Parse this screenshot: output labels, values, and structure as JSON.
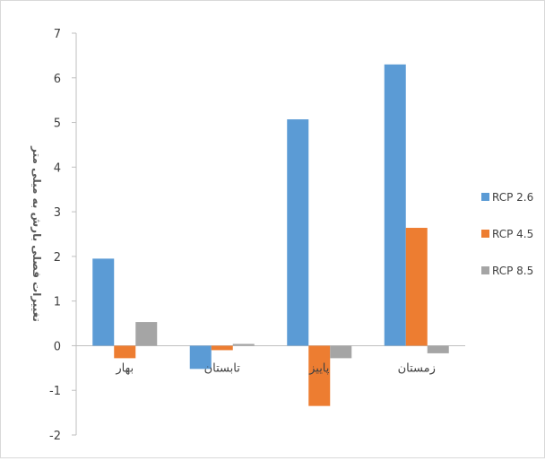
{
  "chart_data": {
    "type": "bar",
    "ylabel": "تغییرات فصلی بارش به میلی متر",
    "categories": [
      "بهار",
      "تابستان",
      "پاییز",
      "زمستان"
    ],
    "ylim": [
      -2,
      7
    ],
    "yticks": [
      -2,
      -1,
      0,
      1,
      2,
      3,
      4,
      5,
      6,
      7
    ],
    "grid": false,
    "legend_position": "right",
    "series": [
      {
        "name": "RCP 2.6",
        "color": "#5b9bd5",
        "values": [
          1.95,
          -0.52,
          5.07,
          6.3
        ]
      },
      {
        "name": "RCP 4.5",
        "color": "#ed7d31",
        "values": [
          -0.28,
          -0.1,
          -1.35,
          2.64
        ]
      },
      {
        "name": "RCP 8.5",
        "color": "#a5a5a5",
        "values": [
          0.53,
          0.04,
          -0.28,
          -0.17
        ]
      }
    ]
  }
}
